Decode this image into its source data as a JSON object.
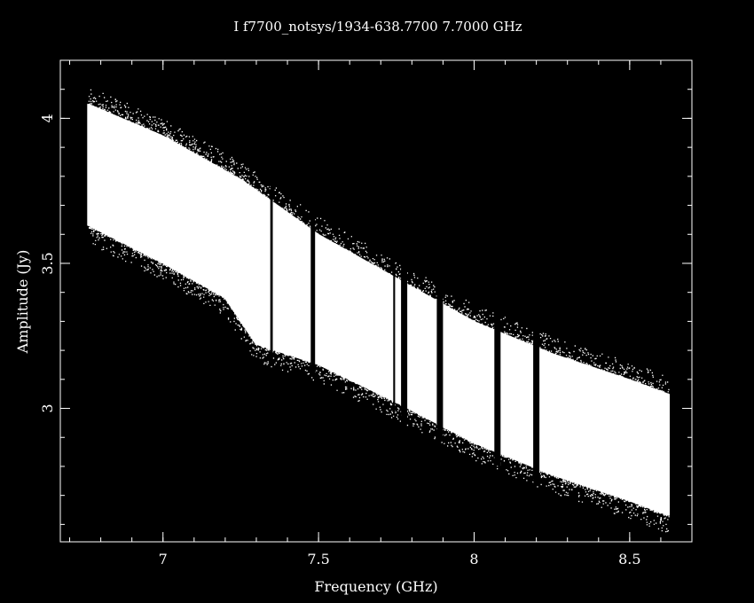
{
  "chart_data": {
    "type": "scatter",
    "title": "I f7700_notsys/1934-638.7700  7.7000 GHz",
    "xlabel": "Frequency (GHz)",
    "ylabel": "Amplitude (Jy)",
    "xlim": [
      6.67,
      8.7
    ],
    "ylim": [
      2.54,
      4.2
    ],
    "xticks": [
      7,
      7.5,
      8,
      8.5
    ],
    "xtick_labels": [
      "7",
      "7.5",
      "8",
      "8.5"
    ],
    "yticks": [
      3,
      3.5,
      4
    ],
    "ytick_labels": [
      "3",
      "3.5",
      "4"
    ],
    "x_minor_step": 0.1,
    "y_minor_step": 0.1,
    "grid": false,
    "background": "#000000",
    "foreground": "#ffffff",
    "band": {
      "x_start": 6.76,
      "x_end": 8.625,
      "upper_edge": [
        [
          6.76,
          4.05
        ],
        [
          7.0,
          3.94
        ],
        [
          7.25,
          3.79
        ],
        [
          7.5,
          3.6
        ],
        [
          7.75,
          3.45
        ],
        [
          8.0,
          3.3
        ],
        [
          8.25,
          3.19
        ],
        [
          8.5,
          3.1
        ],
        [
          8.625,
          3.05
        ]
      ],
      "lower_edge": [
        [
          6.76,
          3.63
        ],
        [
          7.0,
          3.5
        ],
        [
          7.2,
          3.38
        ],
        [
          7.3,
          3.22
        ],
        [
          7.5,
          3.15
        ],
        [
          7.75,
          3.02
        ],
        [
          8.0,
          2.88
        ],
        [
          8.25,
          2.77
        ],
        [
          8.5,
          2.68
        ],
        [
          8.625,
          2.63
        ]
      ],
      "scatter_spread": 0.06
    },
    "gaps": [
      {
        "x": 7.345,
        "width": 0.008
      },
      {
        "x": 7.475,
        "width": 0.014
      },
      {
        "x": 7.74,
        "width": 0.006
      },
      {
        "x": 7.765,
        "width": 0.02
      },
      {
        "x": 7.88,
        "width": 0.02
      },
      {
        "x": 8.065,
        "width": 0.02
      },
      {
        "x": 8.19,
        "width": 0.02
      }
    ]
  }
}
